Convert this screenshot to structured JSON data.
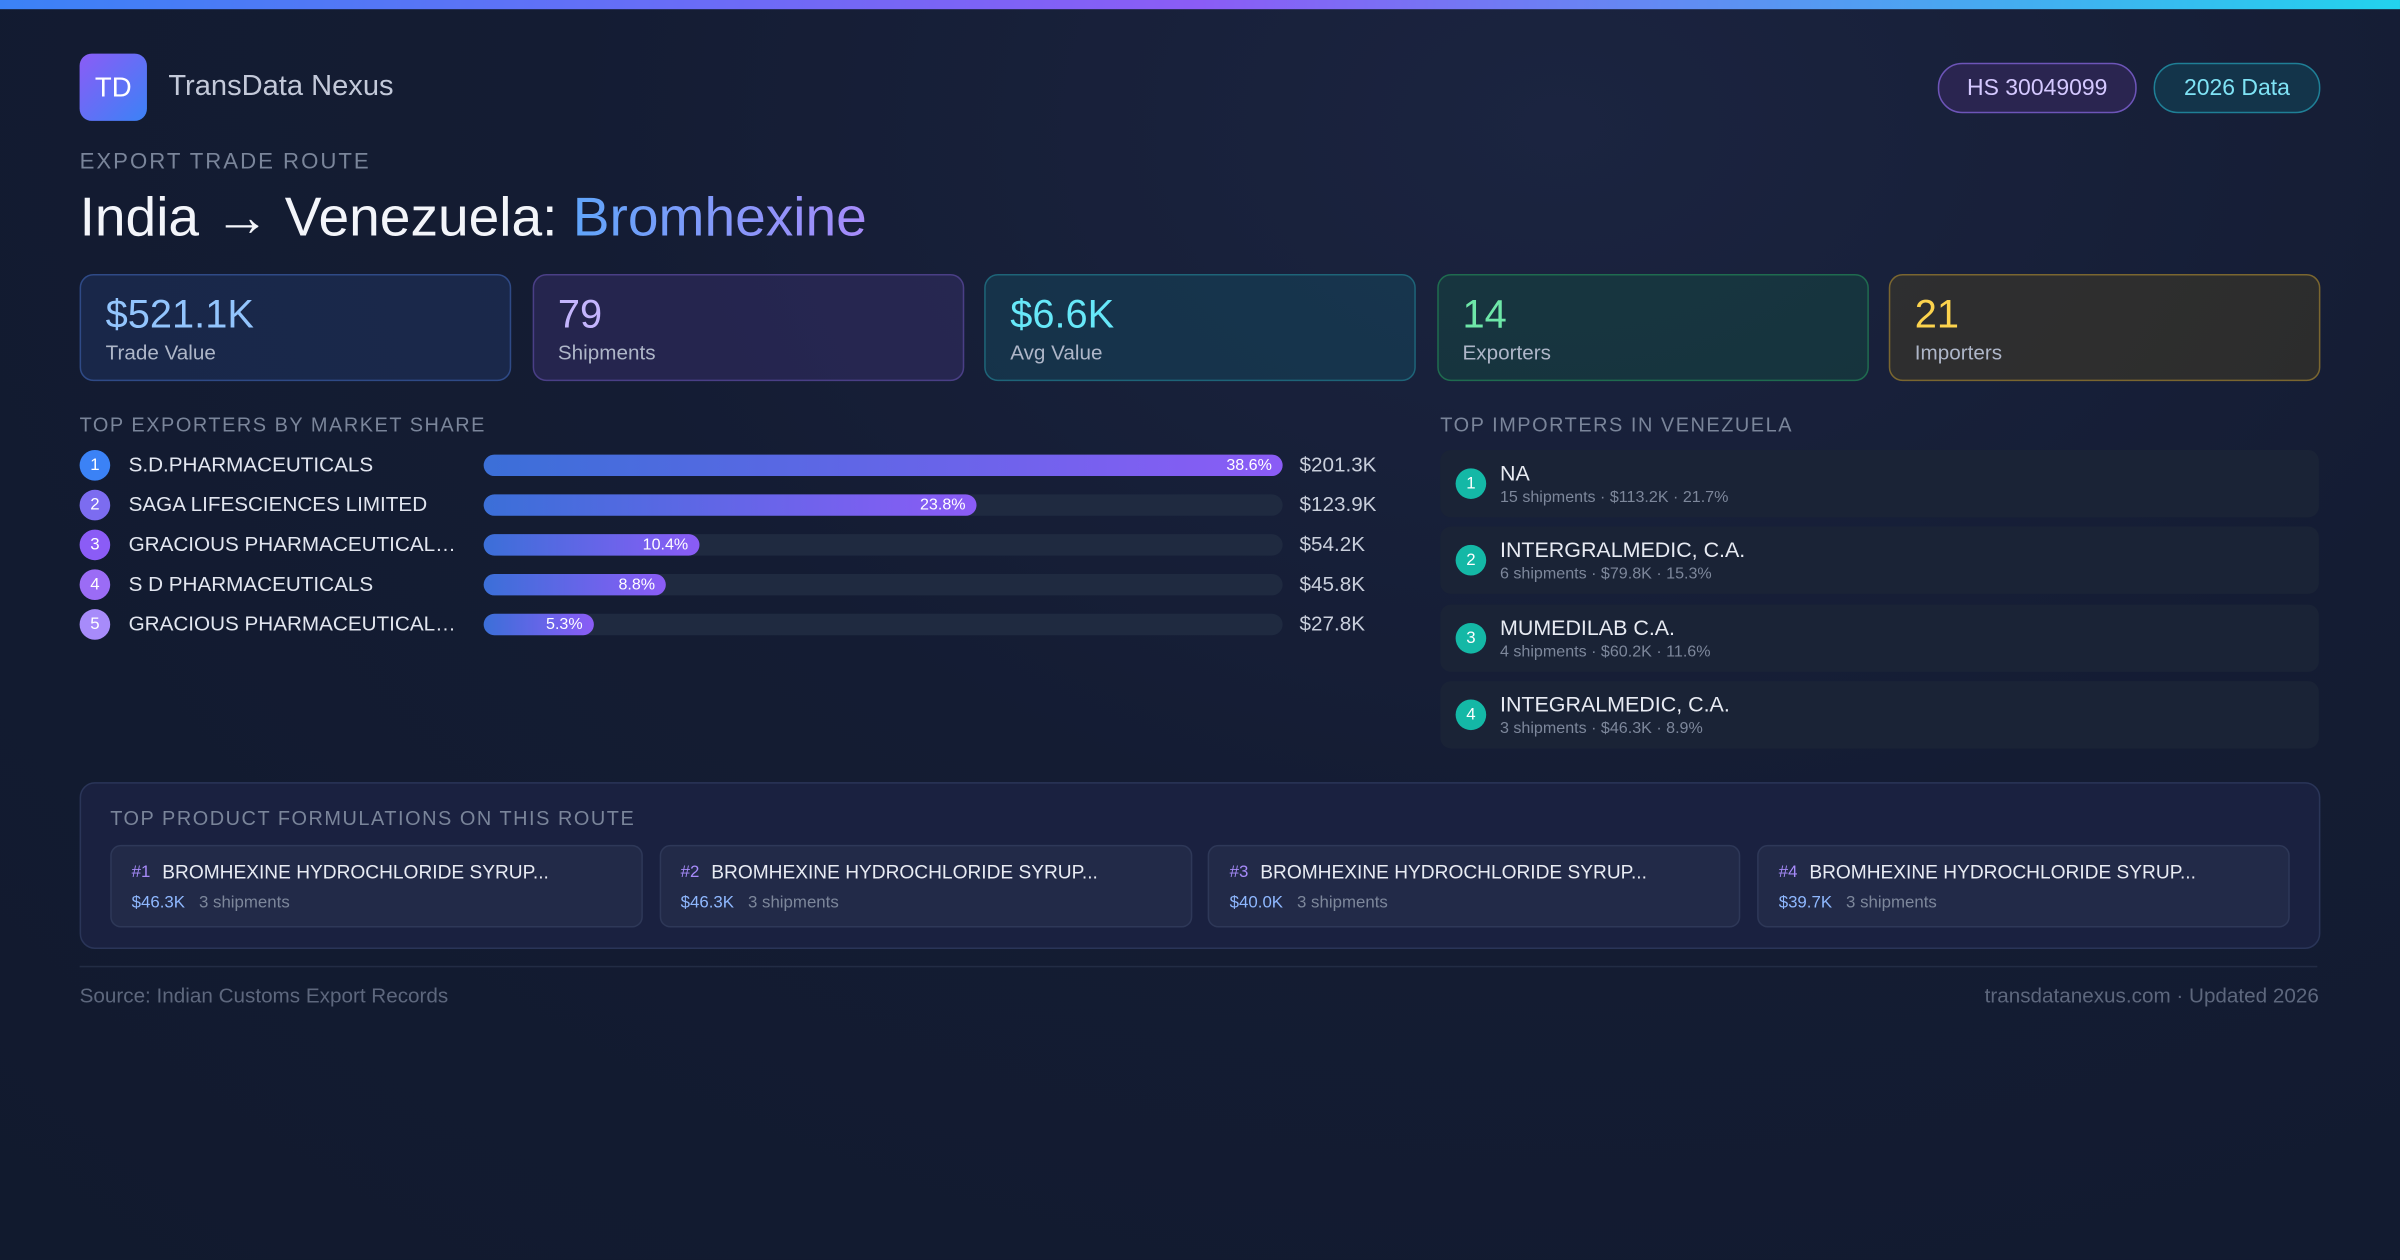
{
  "header": {
    "logo": "TD",
    "brand": "TransData Nexus",
    "badges": [
      "HS 30049099",
      "2026 Data"
    ]
  },
  "title": {
    "eyebrow": "EXPORT TRADE ROUTE",
    "route": "India → Venezuela:",
    "product": "Bromhexine"
  },
  "stats": [
    {
      "value": "$521.1K",
      "label": "Trade Value"
    },
    {
      "value": "79",
      "label": "Shipments"
    },
    {
      "value": "$6.6K",
      "label": "Avg Value"
    },
    {
      "value": "14",
      "label": "Exporters"
    },
    {
      "value": "21",
      "label": "Importers"
    }
  ],
  "exporters": {
    "heading": "TOP EXPORTERS BY MARKET SHARE",
    "rows": [
      {
        "rank": 1,
        "name": "S.D.PHARMACEUTICALS",
        "share": 38.6,
        "share_label": "38.6%",
        "value": "$201.3K"
      },
      {
        "rank": 2,
        "name": "SAGA LIFESCIENCES LIMITED",
        "share": 23.8,
        "share_label": "23.8%",
        "value": "$123.9K"
      },
      {
        "rank": 3,
        "name": "GRACIOUS PHARMACEUTICALS P...",
        "share": 10.4,
        "share_label": "10.4%",
        "value": "$54.2K"
      },
      {
        "rank": 4,
        "name": "S D PHARMACEUTICALS",
        "share": 8.8,
        "share_label": "8.8%",
        "value": "$45.8K"
      },
      {
        "rank": 5,
        "name": "GRACIOUS PHARMACEUTICALS P...",
        "share": 5.3,
        "share_label": "5.3%",
        "value": "$27.8K"
      }
    ]
  },
  "importers": {
    "heading": "TOP IMPORTERS IN VENEZUELA",
    "rows": [
      {
        "rank": 1,
        "name": "NA",
        "detail": "15 shipments · $113.2K · 21.7%"
      },
      {
        "rank": 2,
        "name": "INTERGRALMEDIC, C.A.",
        "detail": "6 shipments · $79.8K · 15.3%"
      },
      {
        "rank": 3,
        "name": "MUMEDILAB C.A.",
        "detail": "4 shipments · $60.2K · 11.6%"
      },
      {
        "rank": 4,
        "name": "INTEGRALMEDIC, C.A.",
        "detail": "3 shipments · $46.3K · 8.9%"
      }
    ]
  },
  "formulations": {
    "heading": "TOP PRODUCT FORMULATIONS ON THIS ROUTE",
    "items": [
      {
        "rank": "#1",
        "name": "BROMHEXINE HYDROCHLORIDE SYRUP...",
        "value": "$46.3K",
        "shipments": "3 shipments"
      },
      {
        "rank": "#2",
        "name": "BROMHEXINE HYDROCHLORIDE SYRUP...",
        "value": "$46.3K",
        "shipments": "3 shipments"
      },
      {
        "rank": "#3",
        "name": "BROMHEXINE HYDROCHLORIDE SYRUP...",
        "value": "$40.0K",
        "shipments": "3 shipments"
      },
      {
        "rank": "#4",
        "name": "BROMHEXINE HYDROCHLORIDE SYRUP...",
        "value": "$39.7K",
        "shipments": "3 shipments"
      }
    ]
  },
  "footer": {
    "source": "Source: Indian Customs Export Records",
    "site": "transdatanexus.com · Updated 2026"
  }
}
